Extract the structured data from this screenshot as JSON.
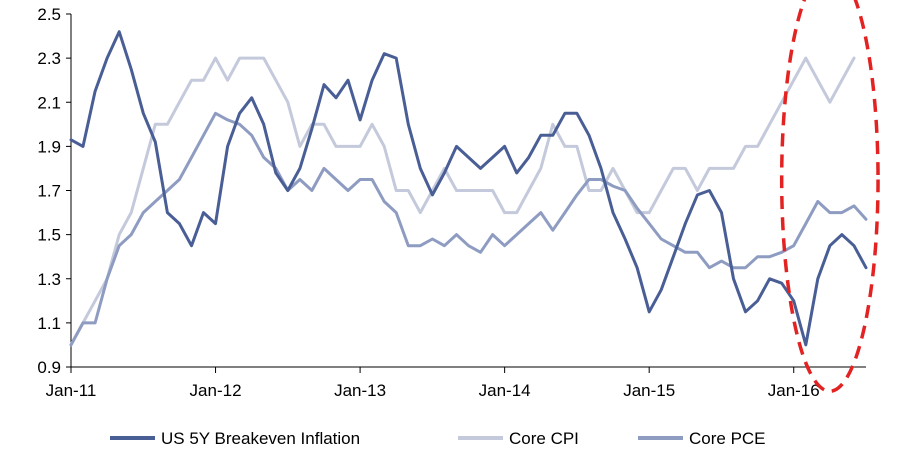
{
  "chart_data": {
    "type": "line",
    "title": "",
    "xlabel": "",
    "ylabel": "",
    "ylim": [
      0.9,
      2.5
    ],
    "yticks": [
      "2.5",
      "2.3",
      "2.1",
      "1.9",
      "1.7",
      "1.5",
      "1.3",
      "1.1",
      "0.9"
    ],
    "xlim": [
      "2011-01",
      "2016-07"
    ],
    "xticks": [
      {
        "label": "Jan-11",
        "x": "2011-01"
      },
      {
        "label": "Jan-12",
        "x": "2012-01"
      },
      {
        "label": "Jan-13",
        "x": "2013-01"
      },
      {
        "label": "Jan-14",
        "x": "2014-01"
      },
      {
        "label": "Jan-15",
        "x": "2015-01"
      },
      {
        "label": "Jan-16",
        "x": "2016-01"
      }
    ],
    "grid": false,
    "legend": "bottom",
    "series": [
      {
        "name": "US 5Y Breakeven Inflation",
        "color": "#4a5e96",
        "points": [
          [
            "2011-01",
            1.93
          ],
          [
            "2011-02",
            1.9
          ],
          [
            "2011-03",
            2.15
          ],
          [
            "2011-04",
            2.3
          ],
          [
            "2011-05",
            2.42
          ],
          [
            "2011-06",
            2.25
          ],
          [
            "2011-07",
            2.05
          ],
          [
            "2011-08",
            1.92
          ],
          [
            "2011-09",
            1.6
          ],
          [
            "2011-10",
            1.55
          ],
          [
            "2011-11",
            1.45
          ],
          [
            "2011-12",
            1.6
          ],
          [
            "2012-01",
            1.55
          ],
          [
            "2012-02",
            1.9
          ],
          [
            "2012-03",
            2.05
          ],
          [
            "2012-04",
            2.12
          ],
          [
            "2012-05",
            2.0
          ],
          [
            "2012-06",
            1.78
          ],
          [
            "2012-07",
            1.7
          ],
          [
            "2012-08",
            1.8
          ],
          [
            "2012-09",
            1.98
          ],
          [
            "2012-10",
            2.18
          ],
          [
            "2012-11",
            2.12
          ],
          [
            "2012-12",
            2.2
          ],
          [
            "2013-01",
            2.02
          ],
          [
            "2013-02",
            2.2
          ],
          [
            "2013-03",
            2.32
          ],
          [
            "2013-04",
            2.3
          ],
          [
            "2013-05",
            2.0
          ],
          [
            "2013-06",
            1.8
          ],
          [
            "2013-07",
            1.68
          ],
          [
            "2013-08",
            1.78
          ],
          [
            "2013-09",
            1.9
          ],
          [
            "2013-10",
            1.85
          ],
          [
            "2013-11",
            1.8
          ],
          [
            "2013-12",
            1.85
          ],
          [
            "2014-01",
            1.9
          ],
          [
            "2014-02",
            1.78
          ],
          [
            "2014-03",
            1.85
          ],
          [
            "2014-04",
            1.95
          ],
          [
            "2014-05",
            1.95
          ],
          [
            "2014-06",
            2.05
          ],
          [
            "2014-07",
            2.05
          ],
          [
            "2014-08",
            1.95
          ],
          [
            "2014-09",
            1.8
          ],
          [
            "2014-10",
            1.6
          ],
          [
            "2014-11",
            1.48
          ],
          [
            "2014-12",
            1.35
          ],
          [
            "2015-01",
            1.15
          ],
          [
            "2015-02",
            1.25
          ],
          [
            "2015-03",
            1.4
          ],
          [
            "2015-04",
            1.55
          ],
          [
            "2015-05",
            1.68
          ],
          [
            "2015-06",
            1.7
          ],
          [
            "2015-07",
            1.6
          ],
          [
            "2015-08",
            1.3
          ],
          [
            "2015-09",
            1.15
          ],
          [
            "2015-10",
            1.2
          ],
          [
            "2015-11",
            1.3
          ],
          [
            "2015-12",
            1.28
          ],
          [
            "2016-01",
            1.2
          ],
          [
            "2016-02",
            1.0
          ],
          [
            "2016-03",
            1.3
          ],
          [
            "2016-04",
            1.45
          ],
          [
            "2016-05",
            1.5
          ],
          [
            "2016-06",
            1.45
          ],
          [
            "2016-07",
            1.35
          ]
        ]
      },
      {
        "name": "Core CPI",
        "color": "#c4cadb",
        "points": [
          [
            "2011-01",
            1.0
          ],
          [
            "2011-02",
            1.1
          ],
          [
            "2011-03",
            1.2
          ],
          [
            "2011-04",
            1.3
          ],
          [
            "2011-05",
            1.5
          ],
          [
            "2011-06",
            1.6
          ],
          [
            "2011-07",
            1.8
          ],
          [
            "2011-08",
            2.0
          ],
          [
            "2011-09",
            2.0
          ],
          [
            "2011-10",
            2.1
          ],
          [
            "2011-11",
            2.2
          ],
          [
            "2011-12",
            2.2
          ],
          [
            "2012-01",
            2.3
          ],
          [
            "2012-02",
            2.2
          ],
          [
            "2012-03",
            2.3
          ],
          [
            "2012-04",
            2.3
          ],
          [
            "2012-05",
            2.3
          ],
          [
            "2012-06",
            2.2
          ],
          [
            "2012-07",
            2.1
          ],
          [
            "2012-08",
            1.9
          ],
          [
            "2012-09",
            2.0
          ],
          [
            "2012-10",
            2.0
          ],
          [
            "2012-11",
            1.9
          ],
          [
            "2012-12",
            1.9
          ],
          [
            "2013-01",
            1.9
          ],
          [
            "2013-02",
            2.0
          ],
          [
            "2013-03",
            1.9
          ],
          [
            "2013-04",
            1.7
          ],
          [
            "2013-05",
            1.7
          ],
          [
            "2013-06",
            1.6
          ],
          [
            "2013-07",
            1.7
          ],
          [
            "2013-08",
            1.8
          ],
          [
            "2013-09",
            1.7
          ],
          [
            "2013-10",
            1.7
          ],
          [
            "2013-11",
            1.7
          ],
          [
            "2013-12",
            1.7
          ],
          [
            "2014-01",
            1.6
          ],
          [
            "2014-02",
            1.6
          ],
          [
            "2014-03",
            1.7
          ],
          [
            "2014-04",
            1.8
          ],
          [
            "2014-05",
            2.0
          ],
          [
            "2014-06",
            1.9
          ],
          [
            "2014-07",
            1.9
          ],
          [
            "2014-08",
            1.7
          ],
          [
            "2014-09",
            1.7
          ],
          [
            "2014-10",
            1.8
          ],
          [
            "2014-11",
            1.7
          ],
          [
            "2014-12",
            1.6
          ],
          [
            "2015-01",
            1.6
          ],
          [
            "2015-02",
            1.7
          ],
          [
            "2015-03",
            1.8
          ],
          [
            "2015-04",
            1.8
          ],
          [
            "2015-05",
            1.7
          ],
          [
            "2015-06",
            1.8
          ],
          [
            "2015-07",
            1.8
          ],
          [
            "2015-08",
            1.8
          ],
          [
            "2015-09",
            1.9
          ],
          [
            "2015-10",
            1.9
          ],
          [
            "2015-11",
            2.0
          ],
          [
            "2015-12",
            2.1
          ],
          [
            "2016-01",
            2.2
          ],
          [
            "2016-02",
            2.3
          ],
          [
            "2016-03",
            2.2
          ],
          [
            "2016-04",
            2.1
          ],
          [
            "2016-05",
            2.2
          ],
          [
            "2016-06",
            2.3
          ]
        ]
      },
      {
        "name": "Core PCE",
        "color": "#8f9cc2",
        "points": [
          [
            "2011-01",
            1.0
          ],
          [
            "2011-02",
            1.1
          ],
          [
            "2011-03",
            1.1
          ],
          [
            "2011-04",
            1.3
          ],
          [
            "2011-05",
            1.45
          ],
          [
            "2011-06",
            1.5
          ],
          [
            "2011-07",
            1.6
          ],
          [
            "2011-08",
            1.65
          ],
          [
            "2011-09",
            1.7
          ],
          [
            "2011-10",
            1.75
          ],
          [
            "2011-11",
            1.85
          ],
          [
            "2011-12",
            1.95
          ],
          [
            "2012-01",
            2.05
          ],
          [
            "2012-02",
            2.02
          ],
          [
            "2012-03",
            2.0
          ],
          [
            "2012-04",
            1.95
          ],
          [
            "2012-05",
            1.85
          ],
          [
            "2012-06",
            1.8
          ],
          [
            "2012-07",
            1.7
          ],
          [
            "2012-08",
            1.75
          ],
          [
            "2012-09",
            1.7
          ],
          [
            "2012-10",
            1.8
          ],
          [
            "2012-11",
            1.75
          ],
          [
            "2012-12",
            1.7
          ],
          [
            "2013-01",
            1.75
          ],
          [
            "2013-02",
            1.75
          ],
          [
            "2013-03",
            1.65
          ],
          [
            "2013-04",
            1.6
          ],
          [
            "2013-05",
            1.45
          ],
          [
            "2013-06",
            1.45
          ],
          [
            "2013-07",
            1.48
          ],
          [
            "2013-08",
            1.45
          ],
          [
            "2013-09",
            1.5
          ],
          [
            "2013-10",
            1.45
          ],
          [
            "2013-11",
            1.42
          ],
          [
            "2013-12",
            1.5
          ],
          [
            "2014-01",
            1.45
          ],
          [
            "2014-02",
            1.5
          ],
          [
            "2014-03",
            1.55
          ],
          [
            "2014-04",
            1.6
          ],
          [
            "2014-05",
            1.52
          ],
          [
            "2014-06",
            1.6
          ],
          [
            "2014-07",
            1.68
          ],
          [
            "2014-08",
            1.75
          ],
          [
            "2014-09",
            1.75
          ],
          [
            "2014-10",
            1.72
          ],
          [
            "2014-11",
            1.7
          ],
          [
            "2014-12",
            1.62
          ],
          [
            "2015-01",
            1.55
          ],
          [
            "2015-02",
            1.48
          ],
          [
            "2015-03",
            1.45
          ],
          [
            "2015-04",
            1.42
          ],
          [
            "2015-05",
            1.42
          ],
          [
            "2015-06",
            1.35
          ],
          [
            "2015-07",
            1.38
          ],
          [
            "2015-08",
            1.35
          ],
          [
            "2015-09",
            1.35
          ],
          [
            "2015-10",
            1.4
          ],
          [
            "2015-11",
            1.4
          ],
          [
            "2015-12",
            1.42
          ],
          [
            "2016-01",
            1.45
          ],
          [
            "2016-02",
            1.55
          ],
          [
            "2016-03",
            1.65
          ],
          [
            "2016-04",
            1.6
          ],
          [
            "2016-05",
            1.6
          ],
          [
            "2016-06",
            1.63
          ],
          [
            "2016-07",
            1.57
          ]
        ]
      }
    ],
    "annotations": [
      {
        "type": "dashed-ellipse",
        "color": "#e32222",
        "center_x": "2016-04",
        "center_y": 1.75,
        "half_width_months": 4,
        "half_height": 0.96
      }
    ]
  }
}
